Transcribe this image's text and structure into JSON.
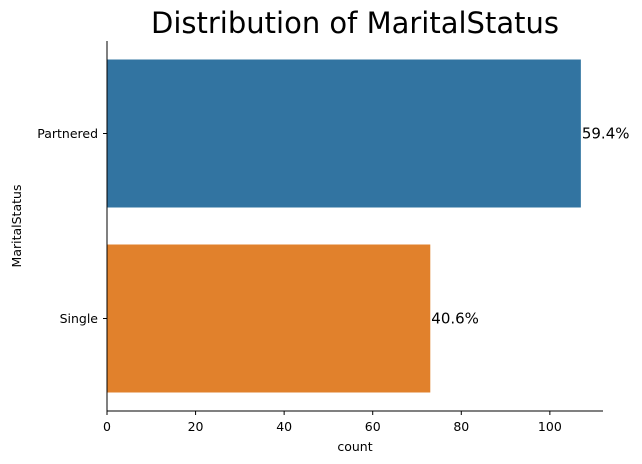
{
  "chart_data": {
    "type": "bar",
    "orientation": "horizontal",
    "title": "Distribution of MaritalStatus",
    "xlabel": "count",
    "ylabel": "MaritalStatus",
    "categories": [
      "Partnered",
      "Single"
    ],
    "values": [
      107,
      73
    ],
    "data_labels": [
      "59.4%",
      "40.6%"
    ],
    "colors": [
      "#3274a1",
      "#e1812c"
    ],
    "xlim": [
      0,
      112
    ],
    "xticks": [
      0,
      20,
      40,
      60,
      80,
      100
    ],
    "grid": false,
    "legend": "none"
  }
}
